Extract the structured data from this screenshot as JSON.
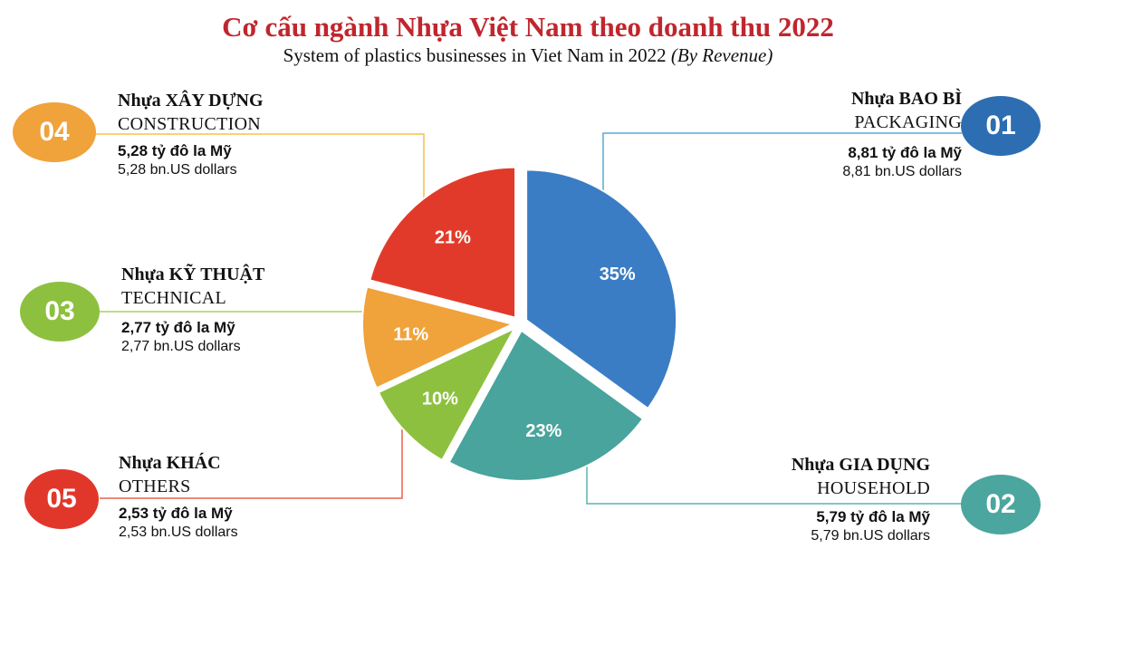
{
  "title": "Cơ cấu ngành Nhựa Việt Nam theo doanh thu 2022",
  "subtitle": "System of plastics businesses in Viet Nam in 2022",
  "subtitle_italic": "(By Revenue)",
  "chart_data": {
    "type": "pie",
    "title": "Cơ cấu ngành Nhựa Việt Nam theo doanh thu 2022",
    "subtitle": "System of plastics businesses in Viet Nam in 2022 (By Revenue)",
    "slices": [
      {
        "id": "01",
        "name_vn": "Nhựa BAO BÌ",
        "name_en": "PACKAGING",
        "value_label": "8,81 tỷ đô la Mỹ",
        "value_usd_label": "8,81 bn.US dollars",
        "value": 8.81,
        "percent": 35,
        "percent_label": "35%",
        "color": "#3a7dc4"
      },
      {
        "id": "02",
        "name_vn": "Nhựa GIA DỤNG",
        "name_en": "HOUSEHOLD",
        "value_label": "5,79 tỷ đô la Mỹ",
        "value_usd_label": "5,79  bn.US dollars",
        "value": 5.79,
        "percent": 23,
        "percent_label": "23%",
        "color": "#48a49c"
      },
      {
        "id": "05",
        "name_vn": "Nhựa KHÁC",
        "name_en": "OTHERS",
        "value_label": "2,53 tỷ đô la Mỹ",
        "value_usd_label": "2,53 bn.US dollars",
        "value": 2.53,
        "percent": 10,
        "percent_label": "10%",
        "color": "#8dc03f"
      },
      {
        "id": "03",
        "name_vn": "Nhựa KỸ THUẬT",
        "name_en": "TECHNICAL",
        "value_label": "2,77 tỷ đô la Mỹ",
        "value_usd_label": "2,77  bn.US dollars",
        "value": 2.77,
        "percent": 11,
        "percent_label": "11%",
        "color": "#f0a23b"
      },
      {
        "id": "04",
        "name_vn": "Nhựa XÂY DỰNG",
        "name_en": "CONSTRUCTION",
        "value_label": "5,28 tỷ đô la Mỹ",
        "value_usd_label": "5,28 bn.US dollars",
        "value": 5.28,
        "percent": 21,
        "percent_label": "21%",
        "color": "#e23a2a"
      }
    ]
  },
  "badge_colors": {
    "01": "#2d6eb2",
    "02": "#4aa69e",
    "03": "#8dc03f",
    "04": "#f0a23b",
    "05": "#e1372b"
  }
}
